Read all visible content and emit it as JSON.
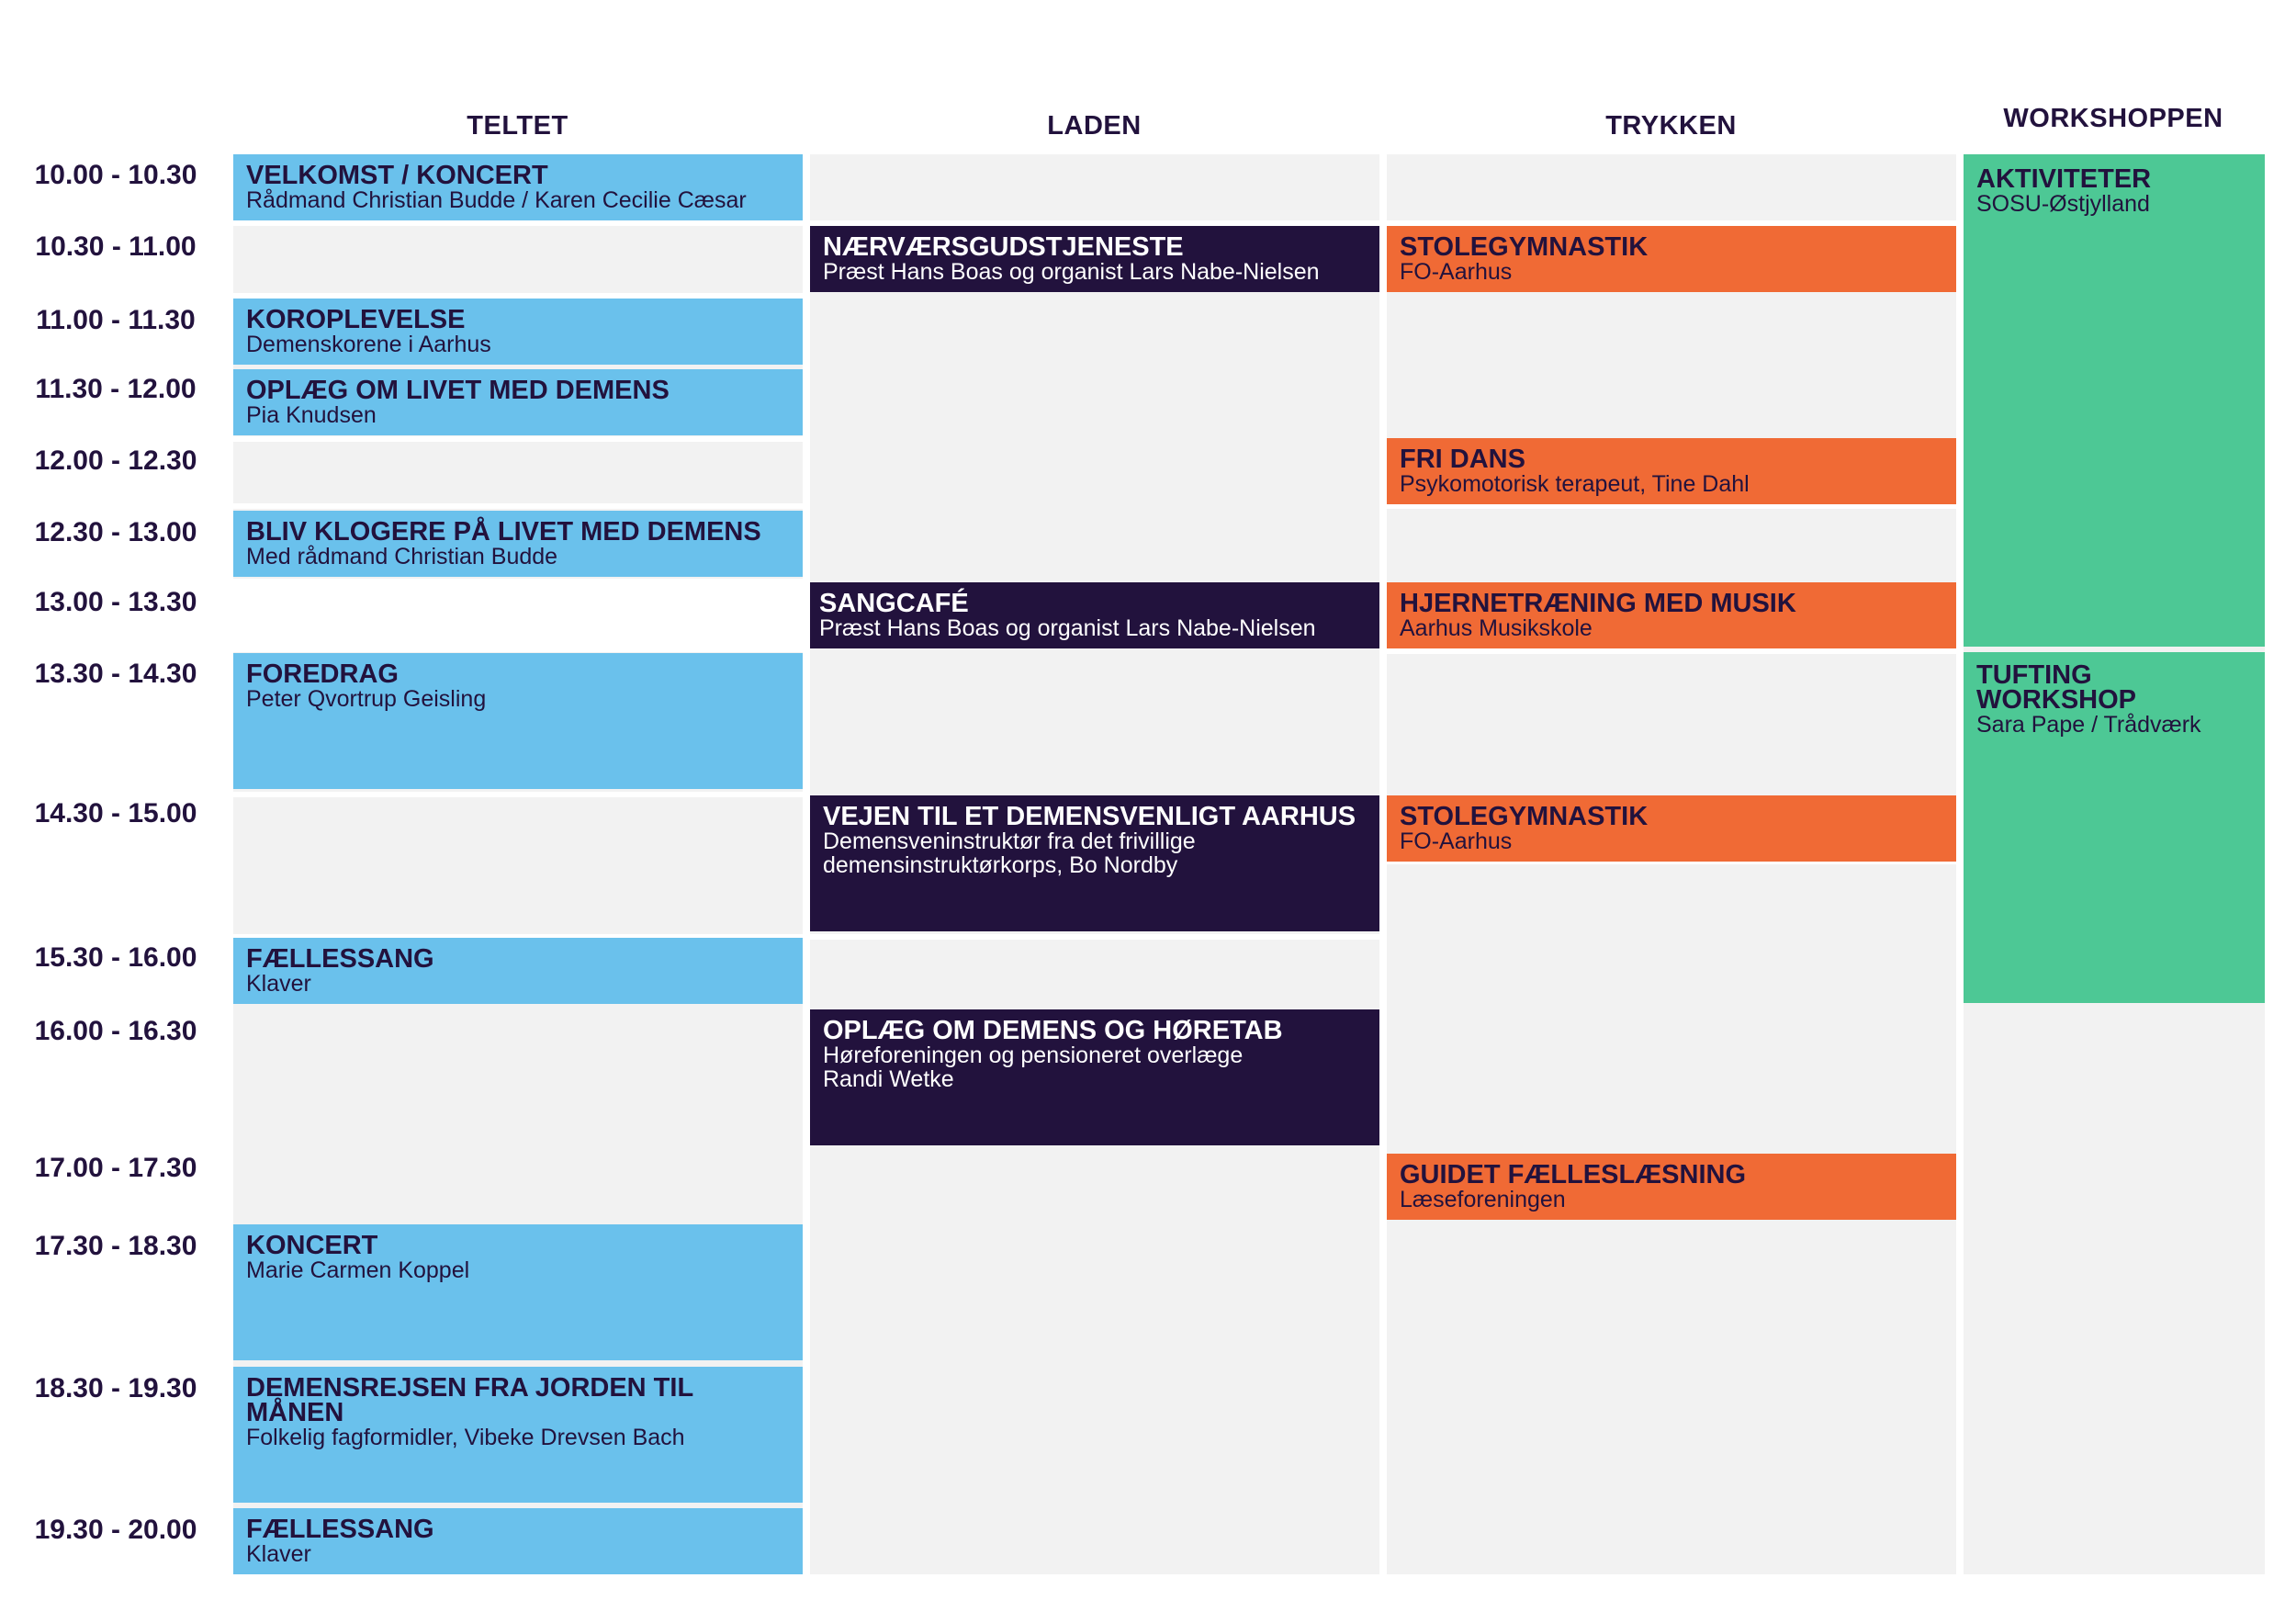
{
  "columns": [
    {
      "id": "teltet",
      "label": "TELTET"
    },
    {
      "id": "laden",
      "label": "LADEN"
    },
    {
      "id": "trykken",
      "label": "TRYKKEN"
    },
    {
      "id": "workshoppen",
      "label": "WORKSHOPPEN"
    }
  ],
  "time_slots": [
    "10.00 - 10.30",
    "10.30 - 11.00",
    "11.00 - 11.30",
    "11.30 - 12.00",
    "12.00 - 12.30",
    "12.30 - 13.00",
    "13.00 - 13.30",
    "13.30 - 14.30",
    "14.30 - 15.00",
    "15.30 - 16.00",
    "16.00 - 16.30",
    "17.00 - 17.30",
    "17.30 - 18.30",
    "18.30 - 19.30",
    "19.30 - 20.00"
  ],
  "colors": {
    "teltet": "#6ac1ec",
    "laden": "#22123d",
    "trykken": "#f06a35",
    "workshoppen": "#4dc895",
    "empty": "#f2f2f2",
    "text_dark": "#22123d"
  },
  "events": {
    "teltet": [
      {
        "title": "VELKOMST / KONCERT",
        "subtitle": "Rådmand Christian Budde / Karen Cecilie Cæsar"
      },
      {
        "title": "KOROPLEVELSE",
        "subtitle": "Demenskorene i Aarhus"
      },
      {
        "title": "OPLÆG OM LIVET MED DEMENS",
        "subtitle": "Pia Knudsen"
      },
      {
        "title": "BLIV KLOGERE PÅ LIVET MED DEMENS",
        "subtitle": "Med rådmand Christian Budde"
      },
      {
        "title": "FOREDRAG",
        "subtitle": "Peter Qvortrup Geisling"
      },
      {
        "title": "FÆLLESSANG",
        "subtitle": "Klaver"
      },
      {
        "title": "KONCERT",
        "subtitle": "Marie Carmen Koppel"
      },
      {
        "title": "DEMENSREJSEN FRA JORDEN TIL MÅNEN",
        "subtitle": "Folkelig fagformidler, Vibeke Drevsen Bach"
      },
      {
        "title": "FÆLLESSANG",
        "subtitle": "Klaver"
      }
    ],
    "laden": [
      {
        "title": "NÆRVÆRSGUDSTJENESTE",
        "subtitle": "Præst Hans Boas og organist Lars Nabe-Nielsen"
      },
      {
        "title": "SANGCAFÉ",
        "subtitle": "Præst Hans Boas og organist Lars Nabe-Nielsen"
      },
      {
        "title": "VEJEN TIL ET DEMENSVENLIGT AARHUS",
        "subtitle": "Demensveninstruktør fra det frivillige",
        "subtitle2": "demensinstruktørkorps, Bo Nordby"
      },
      {
        "title": "OPLÆG OM DEMENS OG HØRETAB",
        "subtitle": "Høreforeningen og pensioneret overlæge",
        "subtitle2": "Randi Wetke"
      }
    ],
    "trykken": [
      {
        "title": "STOLEGYMNASTIK",
        "subtitle": "FO-Aarhus"
      },
      {
        "title": "FRI DANS",
        "subtitle": "Psykomotorisk terapeut, Tine Dahl"
      },
      {
        "title": "HJERNETRÆNING MED MUSIK",
        "subtitle": "Aarhus Musikskole"
      },
      {
        "title": "STOLEGYMNASTIK",
        "subtitle": "FO-Aarhus"
      },
      {
        "title": "GUIDET FÆLLESLÆSNING",
        "subtitle": "Læseforeningen"
      }
    ],
    "workshoppen": [
      {
        "title": "AKTIVITETER",
        "subtitle": "SOSU-Østjylland"
      },
      {
        "title": "TUFTING",
        "title2": "WORKSHOP",
        "subtitle": "Sara Pape / Trådværk"
      }
    ]
  }
}
